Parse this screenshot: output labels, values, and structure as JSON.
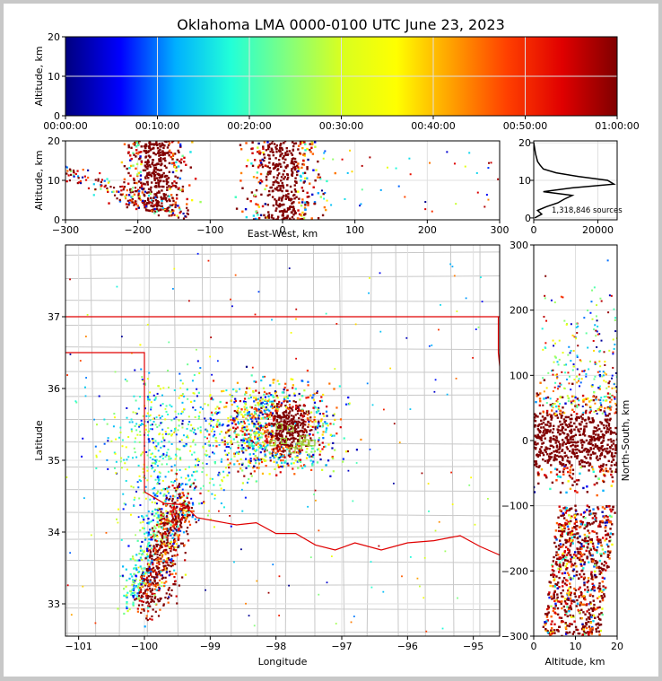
{
  "chart_data": [
    {
      "panel": "time-altitude",
      "type": "scatter",
      "title": "Oklahoma LMA 0000-0100 UTC June 23, 2023",
      "xlabel": "",
      "ylabel": "Altitude, km",
      "xticks": [
        "00:00:00",
        "00:10:00",
        "00:20:00",
        "00:30:00",
        "00:40:00",
        "00:50:00",
        "01:00:00"
      ],
      "yticks": [
        "0",
        "10",
        "20"
      ],
      "xlim": [
        "00:00:00",
        "01:00:00"
      ],
      "ylim": [
        0,
        20
      ],
      "color_by": "time",
      "colormap": [
        "#00007f",
        "#0000ff",
        "#00b0ff",
        "#22ffd8",
        "#80ff80",
        "#d8ff20",
        "#ffff00",
        "#ffa000",
        "#ff4000",
        "#e00000",
        "#800000"
      ],
      "grid": true
    },
    {
      "panel": "east-west-altitude",
      "type": "scatter",
      "xlabel": "East-West, km",
      "ylabel": "Altitude, km",
      "xticks": [
        "−300",
        "−200",
        "−100",
        "0",
        "100",
        "200",
        "300"
      ],
      "yticks": [
        "0",
        "10",
        "20"
      ],
      "xlim": [
        -300,
        300
      ],
      "ylim": [
        0,
        20
      ],
      "clusters": [
        {
          "x_center": -175,
          "x_halfwidth": 40,
          "alt_range": [
            2,
            20
          ]
        },
        {
          "x_center": 0,
          "x_halfwidth": 45,
          "alt_range": [
            0,
            20
          ]
        }
      ],
      "grid": true
    },
    {
      "panel": "altitude-histogram",
      "type": "line",
      "xticks": [
        "0",
        "20000"
      ],
      "yticks": [
        "0",
        "10",
        "20"
      ],
      "xlim": [
        0,
        26000
      ],
      "ylim": [
        0,
        21
      ],
      "annotation": "1,318,846 sources",
      "altitude": [
        0,
        1,
        2,
        3,
        4,
        5,
        6,
        7,
        8,
        9,
        10,
        11,
        12,
        13,
        14,
        15,
        16,
        17,
        18,
        19,
        20
      ],
      "count": [
        300,
        2500,
        1200,
        4000,
        7500,
        9500,
        12000,
        3000,
        12000,
        25000,
        23000,
        14000,
        7000,
        3000,
        2000,
        1200,
        900,
        600,
        400,
        200,
        0
      ]
    },
    {
      "panel": "plan-view",
      "type": "scatter",
      "xlabel": "Longitude",
      "ylabel": "Latitude",
      "xticks": [
        "−101",
        "−100",
        "−99",
        "−98",
        "−97",
        "−96",
        "−95"
      ],
      "yticks": [
        "33",
        "34",
        "35",
        "36",
        "37"
      ],
      "xlim": [
        -101.2,
        -94.6
      ],
      "ylim": [
        32.55,
        38.0
      ],
      "storm_core": {
        "lon": -97.8,
        "lat": 35.45
      },
      "storm_line": {
        "start": [
          -100.0,
          33.0
        ],
        "end": [
          -99.5,
          34.5
        ]
      },
      "stations": [
        {
          "lon": -97.95,
          "lat": 35.47
        },
        {
          "lon": -97.78,
          "lat": 35.44
        },
        {
          "lon": -97.88,
          "lat": 35.27
        },
        {
          "lon": -98.05,
          "lat": 35.24
        },
        {
          "lon": -97.6,
          "lat": 35.3
        },
        {
          "lon": -97.55,
          "lat": 35.25
        },
        {
          "lon": -97.65,
          "lat": 35.2
        },
        {
          "lon": -97.75,
          "lat": 35.14
        },
        {
          "lon": -97.45,
          "lat": 35.24
        }
      ],
      "grid": true
    },
    {
      "panel": "altitude-north-south",
      "type": "scatter",
      "xlabel": "Altitude, km",
      "ylabel": "North-South, km",
      "xticks": [
        "0",
        "10",
        "20"
      ],
      "yticks": [
        "−300",
        "−200",
        "−100",
        "0",
        "100",
        "200",
        "300"
      ],
      "xlim": [
        0,
        20
      ],
      "ylim": [
        -300,
        300
      ],
      "grid": true
    }
  ],
  "colors": {
    "border": "#c8c8c8",
    "state_line": "#e00000",
    "county_line": "#c8c8c8",
    "station": "#9acd32",
    "histogram": "#000000"
  }
}
